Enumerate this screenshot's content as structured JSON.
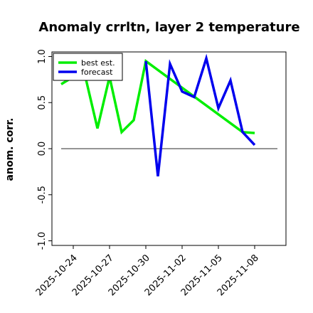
{
  "chart_data": {
    "type": "line",
    "title": "Anomaly crrltn, layer 2 temperature",
    "xlabel": "",
    "ylabel": "anom. corr.",
    "ylim": [
      -1.05,
      1.05
    ],
    "yticks": [
      -1.0,
      -0.5,
      0.0,
      0.5,
      1.0
    ],
    "ytick_labels": [
      "-1.0",
      "-0.5",
      "0.0",
      "0.5",
      "1.0"
    ],
    "grid": false,
    "legend_position": "top-left",
    "x": [
      "2025-10-23 06Z",
      "2025-10-24 06Z",
      "2025-10-25 06Z",
      "2025-10-26 06Z",
      "2025-10-27 06Z",
      "2025-10-28 06Z",
      "2025-10-29 06Z",
      "2025-10-30 06Z",
      "2025-10-31 06Z",
      "2025-11-01 06Z",
      "2025-11-02 06Z",
      "2025-11-03 06Z",
      "2025-11-04 06Z",
      "2025-11-05 06Z",
      "2025-11-06 06Z",
      "2025-11-07 06Z",
      "2025-11-08 06Z"
    ],
    "xticks": [
      {
        "label": "2025-10-24",
        "color": "#000000"
      },
      {
        "label": "2025-10-27",
        "color": "#000000"
      },
      {
        "label": "2025-10-30",
        "color": "#008000"
      },
      {
        "label": "2025-11-02",
        "color": "#000000"
      },
      {
        "label": "2025-11-05",
        "color": "#000000"
      },
      {
        "label": "2025-11-08",
        "color": "#000000"
      }
    ],
    "zero_line": 0.0,
    "series": [
      {
        "name": "best est.",
        "color": "#00ee00",
        "values": [
          0.7,
          0.78,
          0.78,
          0.22,
          0.78,
          0.18,
          0.31,
          0.95,
          null,
          null,
          null,
          null,
          null,
          null,
          null,
          0.18,
          0.17
        ]
      },
      {
        "name": "forecast",
        "color": "#0000ee",
        "values": [
          null,
          null,
          null,
          null,
          null,
          null,
          null,
          0.95,
          -0.3,
          0.92,
          0.62,
          0.56,
          0.98,
          0.44,
          0.74,
          0.18,
          0.04
        ]
      }
    ]
  }
}
